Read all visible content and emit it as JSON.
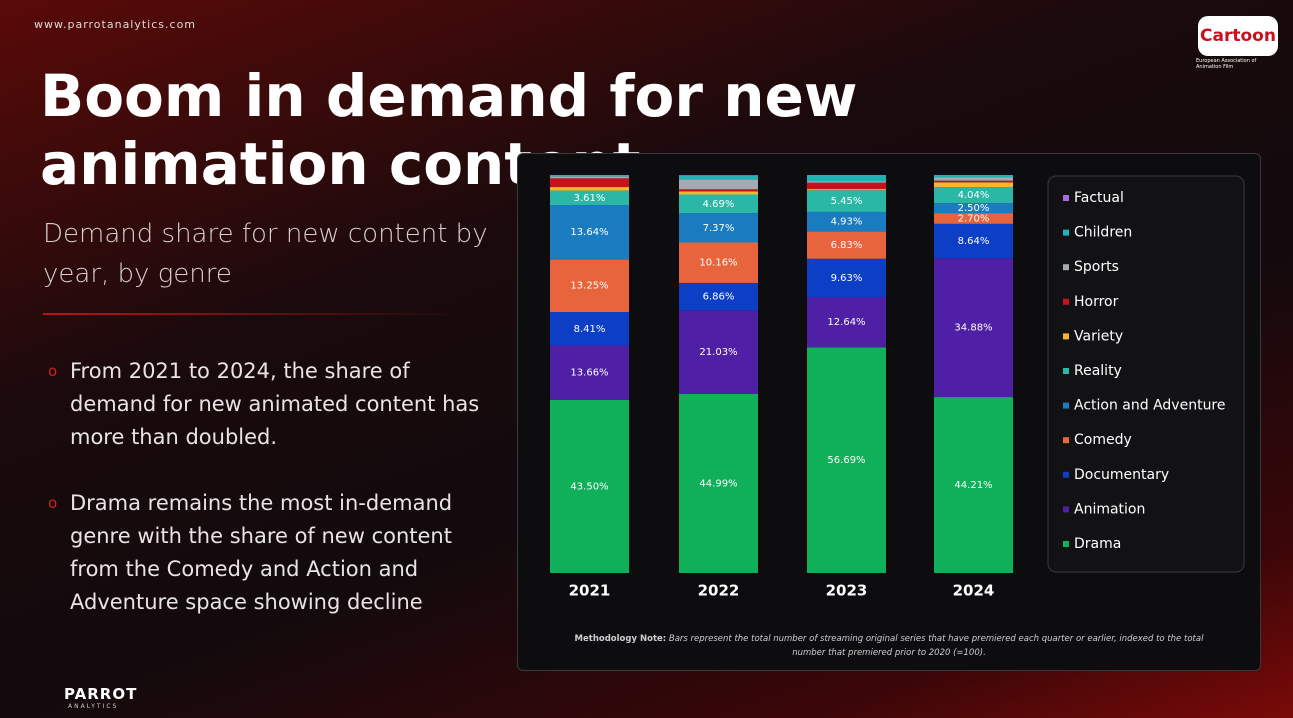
{
  "header": {
    "url": "www.parrotanalytics.com",
    "title": "Boom in demand for new animation content",
    "subtitle": "Demand share for new content by year, by genre"
  },
  "bullets": [
    "From 2021 to 2024, the share of demand for new animated content has more than doubled.",
    "Drama remains the most in-demand genre with the share of new content from the Comedy and Action and Adventure space showing decline"
  ],
  "logos": {
    "cartoon": "Cartoon",
    "cartoon_sub": "European Association of Animation Film",
    "parrot": "PARROT",
    "parrot_sub": "ANALYTICS"
  },
  "note": {
    "label": "Methodology Note:",
    "text": "Bars represent the total number of streaming original series that have premiered each quarter or earlier, indexed to the total number that premiered prior to 2020 (=100)."
  },
  "chart_data": {
    "type": "stacked-bar",
    "categories": [
      "2021",
      "2022",
      "2023",
      "2024"
    ],
    "ylim": [
      0,
      100
    ],
    "series": [
      {
        "name": "Drama",
        "color": "#10b05a",
        "values": [
          43.5,
          44.99,
          56.69,
          44.21
        ],
        "value_labels": [
          "43.50%",
          "44.99%",
          "56.69%",
          "44.21%"
        ]
      },
      {
        "name": "Animation",
        "color": "#4f1fa6",
        "values": [
          13.66,
          21.03,
          12.64,
          34.88
        ],
        "value_labels": [
          "13.66%",
          "21.03%",
          "12.64%",
          "34.88%"
        ]
      },
      {
        "name": "Documentary",
        "color": "#0c3fc6",
        "values": [
          8.41,
          6.86,
          9.63,
          8.64
        ],
        "value_labels": [
          "8.41%",
          "6.86%",
          "9.63%",
          "8.64%"
        ]
      },
      {
        "name": "Comedy",
        "color": "#e8643c",
        "values": [
          13.25,
          10.16,
          6.83,
          2.7
        ],
        "value_labels": [
          "13.25%",
          "10.16%",
          "6.83%",
          "2.70%"
        ]
      },
      {
        "name": "Action and Adventure",
        "color": "#1a7bc0",
        "values": [
          13.64,
          7.37,
          4.93,
          2.5
        ],
        "value_labels": [
          "13.64%",
          "7.37%",
          "4.93%",
          "2.50%"
        ]
      },
      {
        "name": "Reality",
        "color": "#2bb7a6",
        "values": [
          3.61,
          4.69,
          5.45,
          4.04
        ],
        "value_labels": [
          "3.61%",
          "4.69%",
          "5.45%",
          "4.04%"
        ]
      },
      {
        "name": "Variety",
        "color": "#f4b731",
        "values": [
          0.9,
          0.8,
          0.3,
          1.2
        ],
        "value_labels": [
          null,
          null,
          null,
          null
        ]
      },
      {
        "name": "Horror",
        "color": "#c8101e",
        "values": [
          2.2,
          0.5,
          1.6,
          0.4
        ],
        "value_labels": [
          null,
          null,
          null,
          null
        ]
      },
      {
        "name": "Sports",
        "color": "#a3aab2",
        "values": [
          0.5,
          2.5,
          0.4,
          0.9
        ],
        "value_labels": [
          null,
          null,
          null,
          null
        ]
      },
      {
        "name": "Children",
        "color": "#1fb3b8",
        "values": [
          0.2,
          0.9,
          1.4,
          0.4
        ],
        "value_labels": [
          null,
          null,
          null,
          null
        ]
      },
      {
        "name": "Factual",
        "color": "#a66de0",
        "values": [
          0.13,
          0.2,
          0.13,
          0.13
        ],
        "value_labels": [
          null,
          null,
          null,
          null
        ]
      }
    ]
  }
}
